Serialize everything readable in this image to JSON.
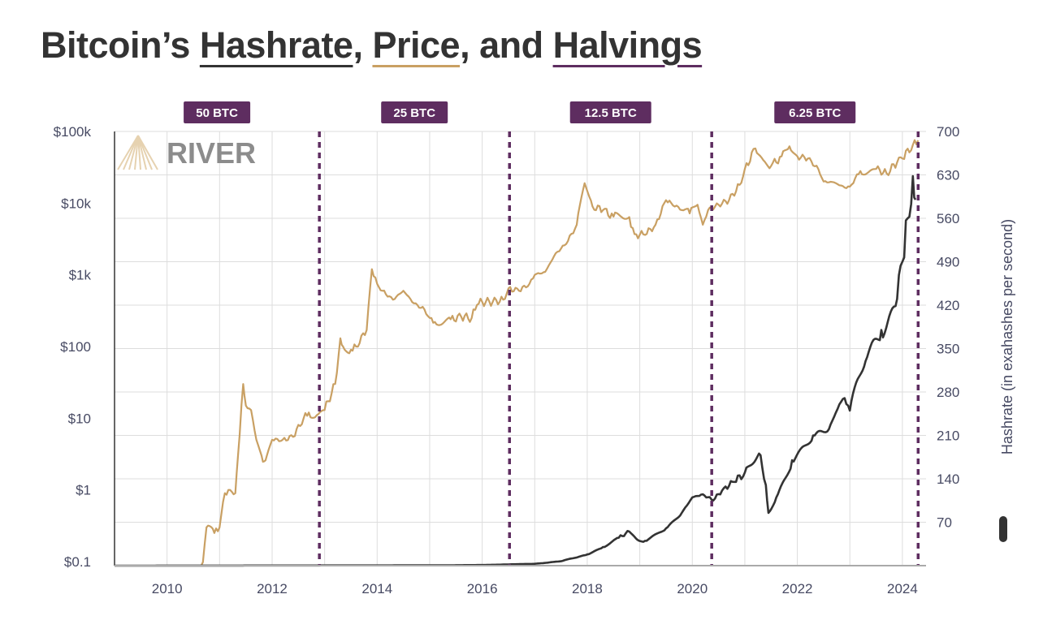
{
  "title": {
    "prefix": "Bitcoin’s ",
    "hashrate": "Hashrate",
    "sep1": ", ",
    "price": "Price",
    "sep2": ", and ",
    "halvings": "Halvings"
  },
  "logo_text": "RIVER",
  "colors": {
    "price": "#c9a063",
    "hashrate": "#333333",
    "halving": "#5e2d60",
    "text": "#474a63",
    "grid": "#dddddd"
  },
  "chart_data": {
    "type": "line",
    "x_range": [
      2009,
      2024.45
    ],
    "x_ticks": [
      "2010",
      "2012",
      "2014",
      "2016",
      "2018",
      "2020",
      "2022",
      "2024"
    ],
    "left_axis": {
      "scale": "log",
      "range": [
        0.1,
        100000
      ],
      "ticks": [
        {
          "value": 100000,
          "label": "$100k"
        },
        {
          "value": 10000,
          "label": "$10k"
        },
        {
          "value": 1000,
          "label": "$1k"
        },
        {
          "value": 100,
          "label": "$100"
        },
        {
          "value": 10,
          "label": "$10"
        },
        {
          "value": 1,
          "label": "$1"
        },
        {
          "value": 0.1,
          "label": "$0.1"
        }
      ]
    },
    "right_axis": {
      "scale": "linear",
      "range": [
        0,
        700
      ],
      "label": "Hashrate (in exahashes per second)",
      "ticks": [
        "700",
        "630",
        "560",
        "490",
        "420",
        "350",
        "280",
        "210",
        "140",
        "70"
      ]
    },
    "grid": true,
    "halvings": [
      {
        "date": 2012.9,
        "label": "50 BTC"
      },
      {
        "date": 2016.52,
        "label": "25 BTC"
      },
      {
        "date": 2020.37,
        "label": "12.5 BTC"
      },
      {
        "date": 2024.3,
        "label": "6.25 BTC"
      }
    ],
    "series": [
      {
        "key": "price",
        "axis": "left",
        "points": [
          [
            2010.65,
            0.06
          ],
          [
            2010.75,
            0.3
          ],
          [
            2010.9,
            0.25
          ],
          [
            2011.0,
            0.3
          ],
          [
            2011.1,
            0.9
          ],
          [
            2011.2,
            1.0
          ],
          [
            2011.3,
            0.9
          ],
          [
            2011.35,
            3
          ],
          [
            2011.45,
            30
          ],
          [
            2011.5,
            15
          ],
          [
            2011.6,
            13
          ],
          [
            2011.7,
            5
          ],
          [
            2011.8,
            3
          ],
          [
            2011.85,
            2.5
          ],
          [
            2011.9,
            3
          ],
          [
            2012.0,
            5
          ],
          [
            2012.2,
            5
          ],
          [
            2012.4,
            5.5
          ],
          [
            2012.6,
            10
          ],
          [
            2012.7,
            12
          ],
          [
            2012.85,
            11
          ],
          [
            2013.0,
            13
          ],
          [
            2013.2,
            30
          ],
          [
            2013.3,
            130
          ],
          [
            2013.35,
            100
          ],
          [
            2013.5,
            90
          ],
          [
            2013.6,
            100
          ],
          [
            2013.8,
            170
          ],
          [
            2013.9,
            1200
          ],
          [
            2014.0,
            750
          ],
          [
            2014.1,
            600
          ],
          [
            2014.3,
            450
          ],
          [
            2014.5,
            600
          ],
          [
            2014.7,
            400
          ],
          [
            2014.9,
            330
          ],
          [
            2015.0,
            250
          ],
          [
            2015.1,
            220
          ],
          [
            2015.4,
            240
          ],
          [
            2015.6,
            260
          ],
          [
            2015.8,
            250
          ],
          [
            2015.9,
            380
          ],
          [
            2016.0,
            420
          ],
          [
            2016.2,
            420
          ],
          [
            2016.4,
            450
          ],
          [
            2016.5,
            650
          ],
          [
            2016.7,
            600
          ],
          [
            2016.9,
            750
          ],
          [
            2017.0,
            1000
          ],
          [
            2017.2,
            1100
          ],
          [
            2017.4,
            2000
          ],
          [
            2017.6,
            2700
          ],
          [
            2017.8,
            5000
          ],
          [
            2017.95,
            19000
          ],
          [
            2018.1,
            9000
          ],
          [
            2018.3,
            8000
          ],
          [
            2018.5,
            6500
          ],
          [
            2018.8,
            6400
          ],
          [
            2018.9,
            3700
          ],
          [
            2019.1,
            3600
          ],
          [
            2019.3,
            5000
          ],
          [
            2019.5,
            11000
          ],
          [
            2019.6,
            10000
          ],
          [
            2019.8,
            8000
          ],
          [
            2019.95,
            7200
          ],
          [
            2020.1,
            9500
          ],
          [
            2020.2,
            5000
          ],
          [
            2020.3,
            8000
          ],
          [
            2020.5,
            9500
          ],
          [
            2020.7,
            11000
          ],
          [
            2020.9,
            18000
          ],
          [
            2021.0,
            30000
          ],
          [
            2021.2,
            58000
          ],
          [
            2021.35,
            40000
          ],
          [
            2021.5,
            33000
          ],
          [
            2021.7,
            45000
          ],
          [
            2021.85,
            62000
          ],
          [
            2022.0,
            45000
          ],
          [
            2022.2,
            42000
          ],
          [
            2022.4,
            30000
          ],
          [
            2022.5,
            20000
          ],
          [
            2022.7,
            19500
          ],
          [
            2022.9,
            16500
          ],
          [
            2023.0,
            17000
          ],
          [
            2023.2,
            28000
          ],
          [
            2023.5,
            30000
          ],
          [
            2023.7,
            26000
          ],
          [
            2023.9,
            37000
          ],
          [
            2024.0,
            42000
          ],
          [
            2024.2,
            65000
          ],
          [
            2024.3,
            75000
          ]
        ]
      },
      {
        "key": "hashrate",
        "axis": "right",
        "points": [
          [
            2009.0,
            0
          ],
          [
            2015.0,
            0.5
          ],
          [
            2016.0,
            1
          ],
          [
            2016.5,
            2
          ],
          [
            2017.0,
            3
          ],
          [
            2017.5,
            7
          ],
          [
            2018.0,
            18
          ],
          [
            2018.3,
            30
          ],
          [
            2018.6,
            45
          ],
          [
            2018.8,
            55
          ],
          [
            2018.95,
            42
          ],
          [
            2019.1,
            40
          ],
          [
            2019.5,
            60
          ],
          [
            2019.8,
            85
          ],
          [
            2020.0,
            110
          ],
          [
            2020.2,
            115
          ],
          [
            2020.4,
            105
          ],
          [
            2020.6,
            125
          ],
          [
            2020.8,
            135
          ],
          [
            2021.0,
            150
          ],
          [
            2021.3,
            178
          ],
          [
            2021.4,
            130
          ],
          [
            2021.45,
            85
          ],
          [
            2021.6,
            110
          ],
          [
            2021.9,
            170
          ],
          [
            2022.3,
            210
          ],
          [
            2022.6,
            220
          ],
          [
            2022.8,
            260
          ],
          [
            2022.9,
            270
          ],
          [
            2023.0,
            250
          ],
          [
            2023.3,
            330
          ],
          [
            2023.6,
            380
          ],
          [
            2023.9,
            430
          ],
          [
            2024.0,
            490
          ],
          [
            2024.1,
            560
          ],
          [
            2024.2,
            628
          ],
          [
            2024.25,
            590
          ]
        ]
      }
    ]
  }
}
